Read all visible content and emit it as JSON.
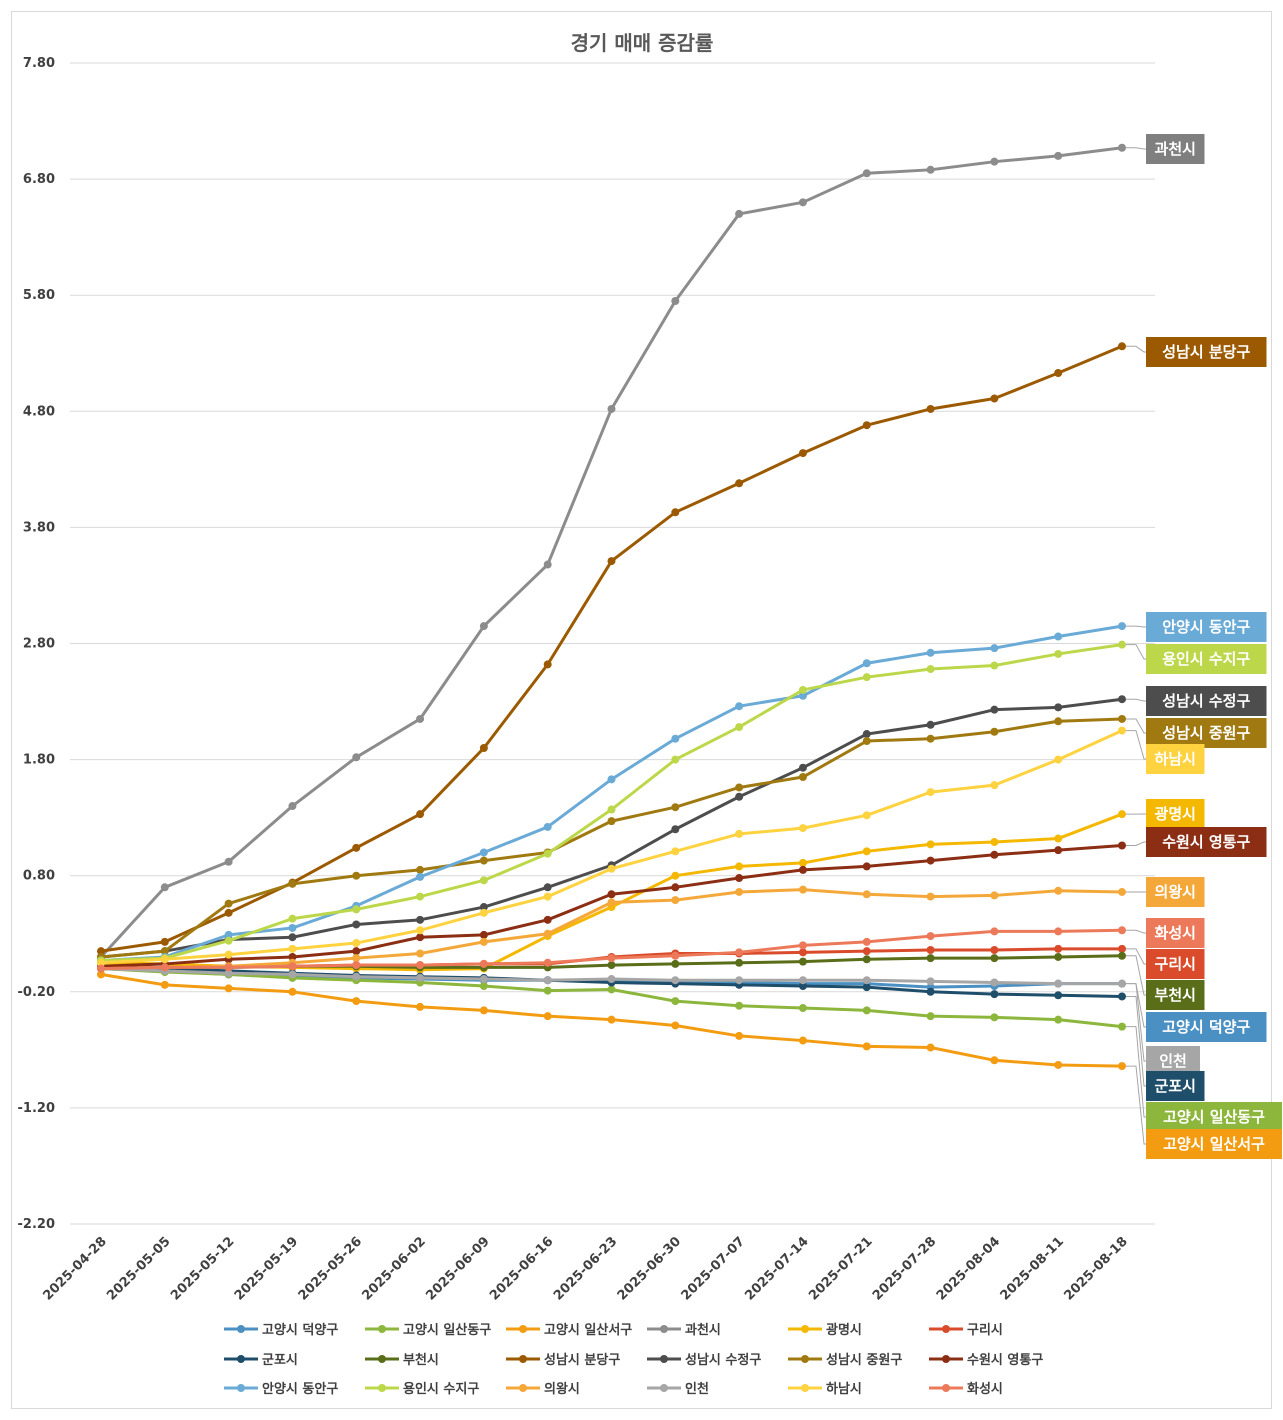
{
  "chart_data": {
    "type": "line",
    "title": "경기 매매 증감률",
    "y_ticks": [
      "7.80",
      "6.80",
      "5.80",
      "4.80",
      "3.80",
      "2.80",
      "1.80",
      "0.80",
      "-0.20",
      "-1.20",
      "-2.20"
    ],
    "ylim": [
      -2.2,
      7.8
    ],
    "grid": true,
    "legend_position": "bottom",
    "x": [
      "2025-04-28",
      "2025-05-05",
      "2025-05-12",
      "2025-05-19",
      "2025-05-26",
      "2025-06-02",
      "2025-06-09",
      "2025-06-16",
      "2025-06-23",
      "2025-06-30",
      "2025-07-07",
      "2025-07-14",
      "2025-07-21",
      "2025-07-28",
      "2025-08-04",
      "2025-08-11",
      "2025-08-18"
    ],
    "series": [
      {
        "name": "고양시 덕양구",
        "color": "#4a90c2",
        "values": [
          0.0,
          -0.02,
          -0.05,
          -0.07,
          -0.08,
          -0.09,
          -0.1,
          -0.1,
          -0.1,
          -0.11,
          -0.12,
          -0.13,
          -0.13,
          -0.16,
          -0.15,
          -0.13,
          -0.13
        ]
      },
      {
        "name": "고양시 일산동구",
        "color": "#8db63c",
        "values": [
          0.0,
          -0.03,
          -0.05,
          -0.08,
          -0.1,
          -0.12,
          -0.15,
          -0.19,
          -0.18,
          -0.28,
          -0.32,
          -0.34,
          -0.36,
          -0.41,
          -0.42,
          -0.44,
          -0.5
        ]
      },
      {
        "name": "고양시 일산서구",
        "color": "#f39c12",
        "values": [
          -0.05,
          -0.14,
          -0.17,
          -0.2,
          -0.28,
          -0.33,
          -0.36,
          -0.41,
          -0.44,
          -0.49,
          -0.58,
          -0.62,
          -0.67,
          -0.68,
          -0.79,
          -0.83,
          -0.84
        ]
      },
      {
        "name": "과천시",
        "color": "#8c8c8c",
        "values": [
          0.1,
          0.7,
          0.92,
          1.4,
          1.82,
          2.15,
          2.95,
          3.48,
          4.82,
          5.75,
          6.5,
          6.6,
          6.85,
          6.88,
          6.95,
          7.0,
          7.07
        ]
      },
      {
        "name": "광명시",
        "color": "#f5b800",
        "values": [
          0.05,
          0.04,
          0.02,
          0.01,
          0.0,
          -0.01,
          0.0,
          0.28,
          0.53,
          0.8,
          0.88,
          0.91,
          1.01,
          1.07,
          1.09,
          1.12,
          1.33
        ]
      },
      {
        "name": "구리시",
        "color": "#d94b2b",
        "values": [
          0.0,
          0.01,
          0.02,
          0.02,
          0.03,
          0.03,
          0.04,
          0.04,
          0.1,
          0.13,
          0.13,
          0.14,
          0.15,
          0.16,
          0.16,
          0.17,
          0.17
        ]
      },
      {
        "name": "군포시",
        "color": "#1f4e6b",
        "values": [
          0.01,
          0.0,
          -0.02,
          -0.04,
          -0.06,
          -0.07,
          -0.08,
          -0.1,
          -0.12,
          -0.13,
          -0.14,
          -0.15,
          -0.16,
          -0.2,
          -0.22,
          -0.23,
          -0.24
        ]
      },
      {
        "name": "부천시",
        "color": "#5a6e1a",
        "values": [
          0.0,
          0.01,
          0.01,
          0.02,
          0.02,
          0.01,
          0.01,
          0.01,
          0.03,
          0.04,
          0.05,
          0.06,
          0.08,
          0.09,
          0.09,
          0.1,
          0.11
        ]
      },
      {
        "name": "성남시 분당구",
        "color": "#9c5a00",
        "values": [
          0.15,
          0.23,
          0.48,
          0.74,
          1.04,
          1.33,
          1.9,
          2.62,
          3.51,
          3.93,
          4.18,
          4.44,
          4.68,
          4.82,
          4.91,
          5.13,
          5.36
        ]
      },
      {
        "name": "성남시 수정구",
        "color": "#4d4d4d",
        "values": [
          0.1,
          0.15,
          0.25,
          0.27,
          0.38,
          0.42,
          0.53,
          0.7,
          0.89,
          1.2,
          1.48,
          1.73,
          2.02,
          2.1,
          2.23,
          2.25,
          2.32
        ]
      },
      {
        "name": "성남시 중원구",
        "color": "#a07a10",
        "values": [
          0.1,
          0.15,
          0.56,
          0.73,
          0.8,
          0.85,
          0.93,
          1.0,
          1.27,
          1.39,
          1.56,
          1.65,
          1.96,
          1.98,
          2.04,
          2.13,
          2.15
        ]
      },
      {
        "name": "수원시 영통구",
        "color": "#8b2e14",
        "values": [
          0.02,
          0.04,
          0.08,
          0.1,
          0.15,
          0.27,
          0.29,
          0.42,
          0.64,
          0.7,
          0.78,
          0.85,
          0.88,
          0.93,
          0.98,
          1.02,
          1.06
        ]
      },
      {
        "name": "안양시 동안구",
        "color": "#6aaad6",
        "values": [
          0.07,
          0.1,
          0.29,
          0.35,
          0.54,
          0.79,
          1.0,
          1.22,
          1.63,
          1.98,
          2.26,
          2.35,
          2.63,
          2.72,
          2.76,
          2.86,
          2.95
        ]
      },
      {
        "name": "용인시 수지구",
        "color": "#bcd84a",
        "values": [
          0.07,
          0.09,
          0.24,
          0.43,
          0.51,
          0.62,
          0.76,
          0.99,
          1.37,
          1.8,
          2.08,
          2.4,
          2.51,
          2.58,
          2.61,
          2.71,
          2.79
        ]
      },
      {
        "name": "의왕시",
        "color": "#f5a83a",
        "values": [
          0.0,
          0.01,
          0.02,
          0.05,
          0.09,
          0.13,
          0.23,
          0.3,
          0.57,
          0.59,
          0.66,
          0.68,
          0.64,
          0.62,
          0.63,
          0.67,
          0.66
        ]
      },
      {
        "name": "인천",
        "color": "#a6a6a6",
        "values": [
          0.0,
          -0.02,
          -0.04,
          -0.05,
          -0.07,
          -0.08,
          -0.09,
          -0.1,
          -0.09,
          -0.1,
          -0.1,
          -0.1,
          -0.1,
          -0.11,
          -0.12,
          -0.13,
          -0.13
        ]
      },
      {
        "name": "하남시",
        "color": "#ffd23f",
        "values": [
          0.05,
          0.08,
          0.12,
          0.17,
          0.22,
          0.33,
          0.48,
          0.62,
          0.86,
          1.01,
          1.16,
          1.21,
          1.32,
          1.52,
          1.58,
          1.8,
          2.05
        ]
      },
      {
        "name": "화성시",
        "color": "#ec7a5a",
        "values": [
          0.0,
          0.01,
          0.01,
          0.02,
          0.03,
          0.03,
          0.04,
          0.05,
          0.09,
          0.11,
          0.14,
          0.2,
          0.23,
          0.28,
          0.32,
          0.32,
          0.33
        ]
      }
    ],
    "end_labels": [
      {
        "text": "과천시",
        "series": "과천시",
        "bg": "#7f7f7f"
      },
      {
        "text": "성남시 분당구",
        "series": "성남시 분당구",
        "bg": "#9c5a00"
      },
      {
        "text": "안양시 동안구",
        "series": "안양시 동안구",
        "bg": "#6aaad6"
      },
      {
        "text": "용인시 수지구",
        "series": "용인시 수지구",
        "bg": "#bcd84a"
      },
      {
        "text": "성남시 수정구",
        "series": "성남시 수정구",
        "bg": "#4d4d4d"
      },
      {
        "text": "성남시 중원구",
        "series": "성남시 중원구",
        "bg": "#a07a10"
      },
      {
        "text": "하남시",
        "series": "하남시",
        "bg": "#ffd23f"
      },
      {
        "text": "광명시",
        "series": "광명시",
        "bg": "#f5b800"
      },
      {
        "text": "수원시 영통구",
        "series": "수원시 영통구",
        "bg": "#8b2e14"
      },
      {
        "text": "의왕시",
        "series": "의왕시",
        "bg": "#f5a83a"
      },
      {
        "text": "화성시",
        "series": "화성시",
        "bg": "#ec7a5a"
      },
      {
        "text": "구리시",
        "series": "구리시",
        "bg": "#d94b2b"
      },
      {
        "text": "부천시",
        "series": "부천시",
        "bg": "#5a6e1a"
      },
      {
        "text": "고양시 덕양구",
        "series": "고양시 덕양구",
        "bg": "#4a90c2"
      },
      {
        "text": "인천",
        "series": "인천",
        "bg": "#a6a6a6"
      },
      {
        "text": "군포시",
        "series": "군포시",
        "bg": "#1f4e6b"
      },
      {
        "text": "고양시 일산동구",
        "series": "고양시 일산동구",
        "bg": "#8db63c"
      },
      {
        "text": "고양시 일산서구",
        "series": "고양시 일산서구",
        "bg": "#f39c12"
      }
    ]
  }
}
